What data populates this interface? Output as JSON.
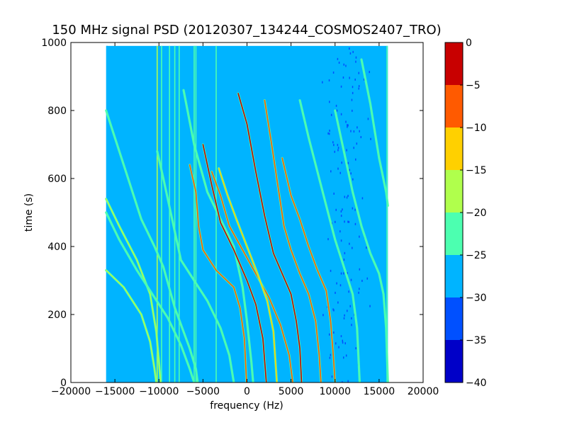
{
  "chart_data": {
    "type": "heatmap",
    "title": "150 MHz signal PSD (20120307_134244_COSMOS2407_TRO)",
    "xlabel": "frequency (Hz)",
    "ylabel": "time (s)",
    "xlim": [
      -20000,
      20000
    ],
    "ylim": [
      0,
      1000
    ],
    "xticks": [
      -20000,
      -15000,
      -10000,
      -5000,
      0,
      5000,
      10000,
      15000,
      20000
    ],
    "xtick_labels": [
      "−20000",
      "−15000",
      "−10000",
      "−5000",
      "0",
      "5000",
      "10000",
      "15000",
      "20000"
    ],
    "yticks": [
      0,
      200,
      400,
      600,
      800,
      1000
    ],
    "ytick_labels": [
      "0",
      "200",
      "400",
      "600",
      "800",
      "1000"
    ],
    "data_extent": {
      "x": [
        -16000,
        16000
      ],
      "y": [
        0,
        990
      ]
    },
    "grid": false,
    "background_level": -28,
    "colorbar": {
      "levels": [
        -40,
        -35,
        -30,
        -25,
        -20,
        -15,
        -10,
        -5,
        0
      ],
      "tick_labels": [
        "−40",
        "−35",
        "−30",
        "−25",
        "−20",
        "−15",
        "−10",
        "−5",
        "0"
      ],
      "colors": [
        "#0000c8",
        "#0050ff",
        "#00b4ff",
        "#4cffb0",
        "#b0ff4c",
        "#ffd000",
        "#ff5a00",
        "#c80000"
      ]
    },
    "vertical_lines": [
      {
        "x": -15900,
        "level": -26
      },
      {
        "x": -10200,
        "level": -18
      },
      {
        "x": -9700,
        "level": -24
      },
      {
        "x": -8800,
        "level": -24
      },
      {
        "x": -8200,
        "level": -25
      },
      {
        "x": -7700,
        "level": -25
      },
      {
        "x": -6000,
        "level": -24
      },
      {
        "x": -5800,
        "level": -25
      },
      {
        "x": -3500,
        "level": -25
      },
      {
        "x": 15900,
        "level": -25
      }
    ],
    "low_power_band": {
      "x": [
        8000,
        14000
      ],
      "level": -33
    },
    "tracks": [
      {
        "level": -18,
        "points": [
          [
            -16000,
            330
          ],
          [
            -14000,
            280
          ],
          [
            -12000,
            200
          ],
          [
            -11000,
            120
          ],
          [
            -10500,
            40
          ],
          [
            -10300,
            0
          ]
        ]
      },
      {
        "level": -20,
        "points": [
          [
            -16000,
            540
          ],
          [
            -14500,
            460
          ],
          [
            -12500,
            360
          ],
          [
            -11000,
            260
          ],
          [
            -10300,
            150
          ],
          [
            -10000,
            60
          ],
          [
            -9800,
            0
          ]
        ]
      },
      {
        "level": -21,
        "points": [
          [
            -16000,
            800
          ],
          [
            -15000,
            720
          ],
          [
            -13500,
            600
          ],
          [
            -12000,
            480
          ],
          [
            -10500,
            400
          ],
          [
            -9500,
            340
          ],
          [
            -8200,
            220
          ],
          [
            -6500,
            100
          ],
          [
            -5800,
            40
          ],
          [
            -5600,
            0
          ]
        ]
      },
      {
        "level": -22,
        "points": [
          [
            -16000,
            500
          ],
          [
            -14500,
            420
          ],
          [
            -12500,
            330
          ],
          [
            -10500,
            250
          ],
          [
            -9000,
            190
          ],
          [
            -7500,
            110
          ],
          [
            -6500,
            40
          ],
          [
            -6000,
            0
          ]
        ]
      },
      {
        "level": -22,
        "points": [
          [
            -10200,
            680
          ],
          [
            -9500,
            600
          ],
          [
            -8500,
            480
          ],
          [
            -7500,
            360
          ],
          [
            -6000,
            300
          ],
          [
            -4500,
            240
          ],
          [
            -3000,
            160
          ],
          [
            -2000,
            80
          ],
          [
            -1500,
            0
          ]
        ]
      },
      {
        "level": -21,
        "points": [
          [
            -7200,
            860
          ],
          [
            -6000,
            700
          ],
          [
            -4500,
            560
          ],
          [
            -3000,
            480
          ],
          [
            -1500,
            400
          ],
          [
            -500,
            280
          ],
          [
            0,
            180
          ],
          [
            500,
            60
          ],
          [
            700,
            0
          ]
        ]
      },
      {
        "level": -6,
        "points": [
          [
            -6500,
            640
          ],
          [
            -5800,
            560
          ],
          [
            -5500,
            460
          ],
          [
            -5000,
            390
          ],
          [
            -3500,
            330
          ],
          [
            -1500,
            280
          ],
          [
            -800,
            220
          ],
          [
            -300,
            130
          ],
          [
            -50,
            0
          ]
        ]
      },
      {
        "level": -5,
        "points": [
          [
            -5000,
            700
          ],
          [
            -4000,
            580
          ],
          [
            -3000,
            470
          ],
          [
            -1500,
            390
          ],
          [
            0,
            300
          ],
          [
            1000,
            230
          ],
          [
            1800,
            130
          ],
          [
            2200,
            0
          ]
        ]
      },
      {
        "level": -8,
        "points": [
          [
            -4000,
            620
          ],
          [
            -3000,
            550
          ],
          [
            -2000,
            460
          ],
          [
            -500,
            390
          ],
          [
            1000,
            320
          ],
          [
            2500,
            250
          ],
          [
            3800,
            170
          ],
          [
            4800,
            80
          ],
          [
            5200,
            0
          ]
        ]
      },
      {
        "level": -14,
        "points": [
          [
            -3200,
            630
          ],
          [
            -2200,
            550
          ],
          [
            -1200,
            480
          ],
          [
            0,
            400
          ],
          [
            1200,
            320
          ],
          [
            2300,
            240
          ],
          [
            3000,
            150
          ],
          [
            3400,
            0
          ]
        ]
      },
      {
        "level": -4,
        "points": [
          [
            -1000,
            850
          ],
          [
            0,
            760
          ],
          [
            1000,
            620
          ],
          [
            2000,
            490
          ],
          [
            3000,
            380
          ],
          [
            4000,
            320
          ],
          [
            5000,
            260
          ],
          [
            5600,
            180
          ],
          [
            6000,
            100
          ],
          [
            6200,
            0
          ]
        ]
      },
      {
        "level": -6,
        "points": [
          [
            2000,
            830
          ],
          [
            2800,
            700
          ],
          [
            3500,
            580
          ],
          [
            4200,
            460
          ],
          [
            5000,
            390
          ],
          [
            6000,
            320
          ],
          [
            7000,
            260
          ],
          [
            7800,
            180
          ],
          [
            8200,
            80
          ],
          [
            8400,
            0
          ]
        ]
      },
      {
        "level": -8,
        "points": [
          [
            4000,
            660
          ],
          [
            5000,
            550
          ],
          [
            6000,
            480
          ],
          [
            7000,
            400
          ],
          [
            8000,
            330
          ],
          [
            9000,
            270
          ],
          [
            9500,
            180
          ],
          [
            9800,
            80
          ],
          [
            10000,
            0
          ]
        ]
      },
      {
        "level": -22,
        "points": [
          [
            6000,
            830
          ],
          [
            7000,
            720
          ],
          [
            8000,
            620
          ],
          [
            9000,
            520
          ],
          [
            10000,
            420
          ],
          [
            11000,
            340
          ],
          [
            12000,
            260
          ],
          [
            12500,
            160
          ],
          [
            12800,
            0
          ]
        ]
      },
      {
        "level": -24,
        "points": [
          [
            10000,
            800
          ],
          [
            11000,
            680
          ],
          [
            12000,
            560
          ],
          [
            13000,
            460
          ],
          [
            14000,
            380
          ],
          [
            15000,
            320
          ],
          [
            15500,
            260
          ],
          [
            15800,
            160
          ],
          [
            16000,
            0
          ]
        ]
      },
      {
        "level": -23,
        "points": [
          [
            13000,
            950
          ],
          [
            14000,
            820
          ],
          [
            15000,
            660
          ],
          [
            15800,
            560
          ],
          [
            16000,
            520
          ]
        ]
      }
    ]
  }
}
